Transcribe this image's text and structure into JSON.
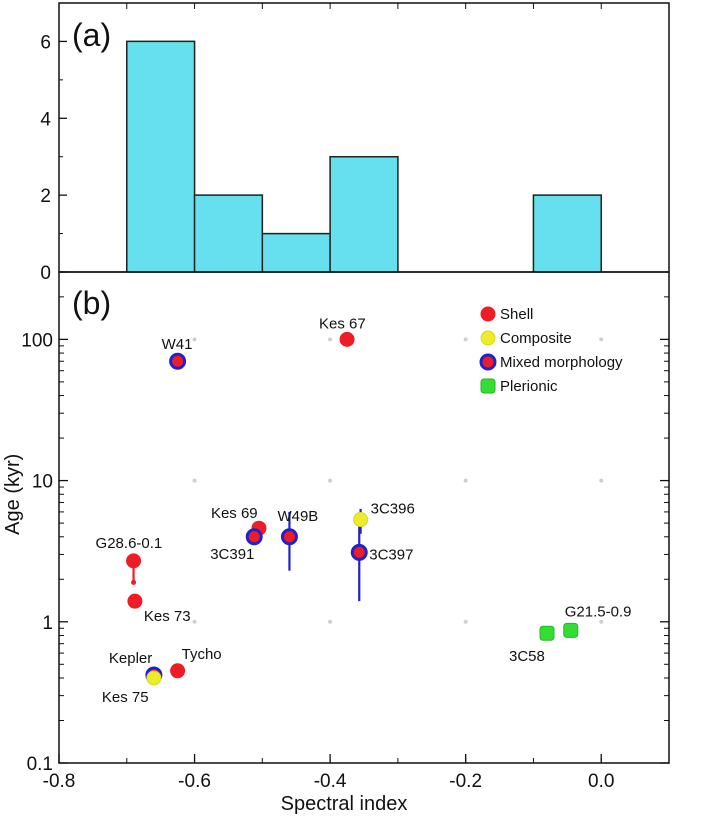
{
  "chart_data": [
    {
      "panel": "(a)",
      "type": "bar",
      "panel_label": "(a)",
      "bins": [
        {
          "x0": -0.7,
          "x1": -0.6,
          "count": 6
        },
        {
          "x0": -0.6,
          "x1": -0.5,
          "count": 2
        },
        {
          "x0": -0.5,
          "x1": -0.4,
          "count": 1
        },
        {
          "x0": -0.4,
          "x1": -0.3,
          "count": 3
        },
        {
          "x0": -0.3,
          "x1": -0.2,
          "count": 0
        },
        {
          "x0": -0.2,
          "x1": -0.1,
          "count": 0
        },
        {
          "x0": -0.1,
          "x1": 0.0,
          "count": 2
        }
      ],
      "xlim": [
        -0.8,
        0.1
      ],
      "ylim": [
        0,
        7
      ],
      "yticks": [
        0,
        2,
        4,
        6
      ],
      "ytick_labels": [
        "0",
        "2",
        "4",
        "6"
      ],
      "bar_color": "#66e0ee",
      "bar_edge_color": "#7fe8a8"
    },
    {
      "panel": "(b)",
      "type": "scatter",
      "panel_label": "(b)",
      "xlabel": "Spectral index",
      "ylabel": "Age (kyr)",
      "xlim": [
        -0.8,
        0.1
      ],
      "ylim": [
        0.1,
        300
      ],
      "yscale": "log",
      "xticks": [
        -0.8,
        -0.6,
        -0.4,
        -0.2,
        0.0
      ],
      "xtick_labels": [
        "-0.8",
        "-0.6",
        "-0.4",
        "-0.2",
        "0.0"
      ],
      "yticks": [
        0.1,
        1,
        10,
        100
      ],
      "ytick_labels": [
        "0.1",
        "1",
        "10",
        "100"
      ],
      "categories": {
        "shell": {
          "label": "Shell",
          "fill": "#ee1c24",
          "edge": "#ee1c24"
        },
        "composite": {
          "label": "Composite",
          "fill": "#ecec2a",
          "edge": "#d8d820"
        },
        "mixed": {
          "label": "Mixed morphology",
          "fill": "#ee1c24",
          "edge": "#2222cc"
        },
        "plerionic": {
          "label": "Plerionic",
          "fill": "#33dd33",
          "edge": "#22bb22"
        }
      },
      "legend_order": [
        "shell",
        "composite",
        "mixed",
        "plerionic"
      ],
      "legend_position": "top-right",
      "points": [
        {
          "name": "W41",
          "cat": "mixed",
          "x": -0.625,
          "y": 70
        },
        {
          "name": "Kes 67",
          "cat": "shell",
          "x": -0.375,
          "y": 100
        },
        {
          "name": "G28.6-0.1",
          "cat": "shell",
          "x": -0.69,
          "y": 2.7,
          "ylo": 1.9,
          "yhi": 2.7
        },
        {
          "name": "Kes 73",
          "cat": "shell",
          "x": -0.688,
          "y": 1.4
        },
        {
          "name": "Kes 69",
          "cat": "shell",
          "x": -0.505,
          "y": 4.6
        },
        {
          "name": "3C391",
          "cat": "mixed",
          "x": -0.512,
          "y": 4.0
        },
        {
          "name": "W49B",
          "cat": "mixed",
          "x": -0.46,
          "y": 4.0,
          "ylo": 2.3,
          "yhi": 6.0
        },
        {
          "name": "3C396",
          "cat": "composite",
          "x": -0.355,
          "y": 5.3,
          "ylo": 4.2,
          "yhi": 6.3
        },
        {
          "name": "3C397",
          "cat": "mixed",
          "x": -0.357,
          "y": 3.1,
          "ylo": 1.4,
          "yhi": 5.3
        },
        {
          "name": "Tycho",
          "cat": "shell",
          "x": -0.625,
          "y": 0.45
        },
        {
          "name": "Kepler",
          "cat": "mixed",
          "x": -0.66,
          "y": 0.42
        },
        {
          "name": "Kes 75",
          "cat": "composite",
          "x": -0.66,
          "y": 0.4
        },
        {
          "name": "G21.5-0.9",
          "cat": "plerionic",
          "x": -0.045,
          "y": 0.87
        },
        {
          "name": "3C58",
          "cat": "plerionic",
          "x": -0.08,
          "y": 0.83
        }
      ]
    }
  ]
}
